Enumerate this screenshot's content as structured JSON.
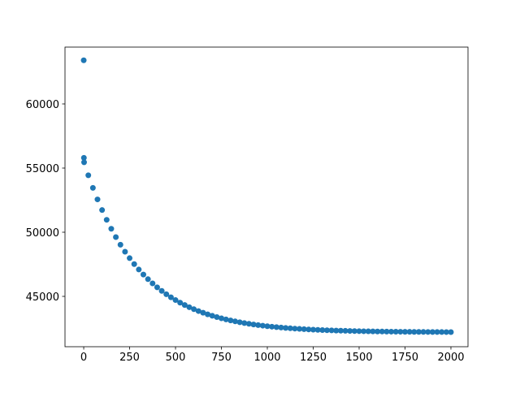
{
  "chart_data": {
    "type": "scatter",
    "color": "#1f77b4",
    "x": [
      0,
      1,
      2,
      25,
      50,
      75,
      100,
      125,
      150,
      175,
      200,
      225,
      250,
      275,
      300,
      325,
      350,
      375,
      400,
      425,
      450,
      475,
      500,
      525,
      550,
      575,
      600,
      625,
      650,
      675,
      700,
      725,
      750,
      775,
      800,
      825,
      850,
      875,
      900,
      925,
      950,
      975,
      1000,
      1025,
      1050,
      1075,
      1100,
      1125,
      1150,
      1175,
      1200,
      1225,
      1250,
      1275,
      1300,
      1325,
      1350,
      1375,
      1400,
      1425,
      1450,
      1475,
      1500,
      1525,
      1550,
      1575,
      1600,
      1625,
      1650,
      1675,
      1700,
      1725,
      1750,
      1775,
      1800,
      1825,
      1850,
      1875,
      1900,
      1925,
      1950,
      1975,
      2000
    ],
    "values": [
      63400,
      55800,
      55450,
      54436,
      53458,
      52558,
      51730,
      50968,
      50267,
      49622,
      49028,
      48483,
      47980,
      47518,
      47093,
      46702,
      46342,
      46011,
      45706,
      45426,
      45168,
      44930,
      44712,
      44511,
      44326,
      44156,
      44000,
      43856,
      43724,
      43602,
      43490,
      43387,
      43292,
      43204,
      43124,
      43050,
      42982,
      42920,
      42862,
      42809,
      42760,
      42716,
      42675,
      42637,
      42602,
      42570,
      42540,
      42513,
      42488,
      42465,
      42444,
      42424,
      42406,
      42390,
      42375,
      42361,
      42348,
      42336,
      42325,
      42315,
      42306,
      42297,
      42290,
      42282,
      42276,
      42270,
      42264,
      42259,
      42254,
      42250,
      42246,
      42242,
      42239,
      42236,
      42233,
      42230,
      42228,
      42226,
      42224,
      42222,
      42220,
      42218,
      42217
    ],
    "xlim": [
      -102,
      2093
    ],
    "ylim": [
      41076,
      64430
    ],
    "xticks": [
      0,
      250,
      500,
      750,
      1000,
      1250,
      1500,
      1750,
      2000
    ],
    "yticks": [
      45000,
      50000,
      55000,
      60000
    ]
  }
}
